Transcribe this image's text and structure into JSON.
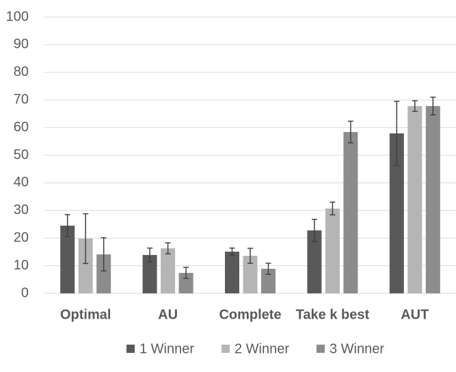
{
  "chart_data": {
    "type": "bar",
    "categories": [
      "Optimal",
      "AU",
      "Complete",
      "Take k best",
      "AUT"
    ],
    "series": [
      {
        "name": "1 Winner",
        "color": "#595959",
        "values": [
          24.5,
          13.9,
          15.1,
          22.8,
          57.9
        ],
        "errors": [
          4,
          2.5,
          1.3,
          4,
          11.6
        ]
      },
      {
        "name": "2 Winner",
        "color": "#b5b5b5",
        "values": [
          19.8,
          16.3,
          13.6,
          30.7,
          67.8
        ],
        "errors": [
          9,
          2,
          2.7,
          2.3,
          1.9
        ]
      },
      {
        "name": "3 Winner",
        "color": "#8c8c8c",
        "values": [
          14.1,
          7.4,
          8.9,
          58.4,
          67.8
        ],
        "errors": [
          6,
          2,
          2,
          3.9,
          3.2
        ]
      }
    ],
    "ylim": [
      0,
      100
    ],
    "yticks": [
      0,
      10,
      20,
      30,
      40,
      50,
      60,
      70,
      80,
      90,
      100
    ],
    "grid": true,
    "legend": "bottom"
  }
}
